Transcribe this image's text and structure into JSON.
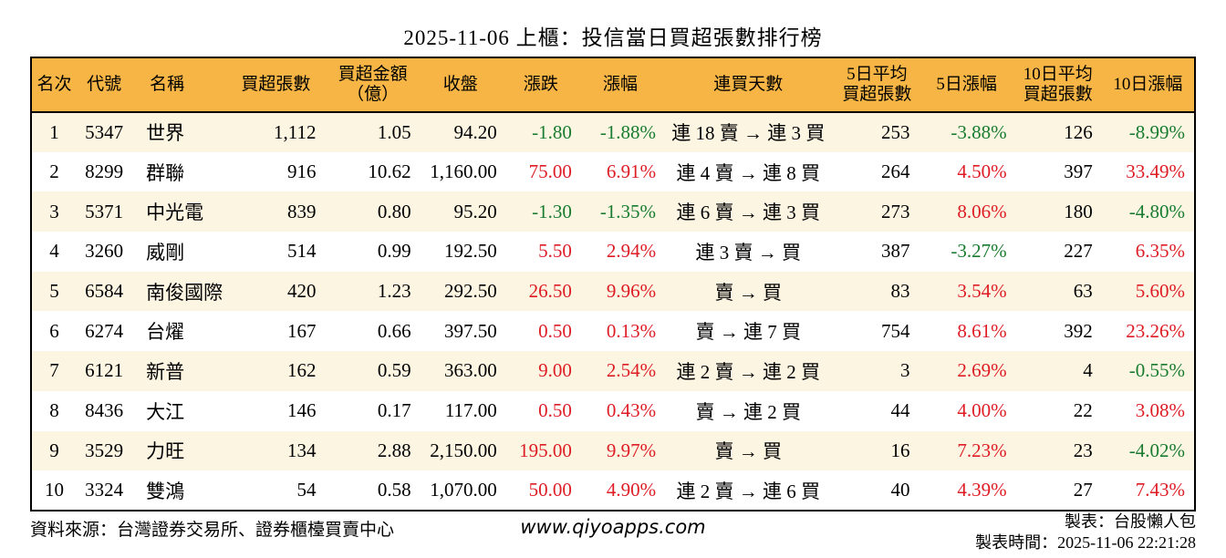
{
  "title": "2025-11-06 上櫃：投信當日買超張數排行榜",
  "colors": {
    "amber": "#F6B544",
    "cream": "#FCF5E2",
    "red": "#DE1C24",
    "green": "#187C30"
  },
  "chart_data": {
    "type": "table",
    "title": "2025-11-06 上櫃：投信當日買超張數排行榜",
    "columns": [
      {
        "key": "rank",
        "label": "名次"
      },
      {
        "key": "code",
        "label": "代號"
      },
      {
        "key": "name",
        "label": "名稱"
      },
      {
        "key": "vol",
        "label": "買超張數"
      },
      {
        "key": "amt",
        "label": "買超金額\n（億）"
      },
      {
        "key": "close",
        "label": "收盤"
      },
      {
        "key": "chg",
        "label": "漲跌"
      },
      {
        "key": "chgpct",
        "label": "漲幅"
      },
      {
        "key": "streak",
        "label": "連買天數"
      },
      {
        "key": "avg5",
        "label": "5日平均\n買超張數"
      },
      {
        "key": "pct5",
        "label": "5日漲幅"
      },
      {
        "key": "avg10",
        "label": "10日平均\n買超張數"
      },
      {
        "key": "pct10",
        "label": "10日漲幅"
      }
    ],
    "colored_keys": [
      "chg",
      "chgpct",
      "pct5",
      "pct10"
    ],
    "rows": [
      {
        "rank": "1",
        "code": "5347",
        "name": "世界",
        "vol": "1,112",
        "amt": "1.05",
        "close": "94.20",
        "chg": "-1.80",
        "chgpct": "-1.88%",
        "streak": "連 18 賣 → 連 3 買",
        "avg5": "253",
        "pct5": "-3.88%",
        "avg10": "126",
        "pct10": "-8.99%"
      },
      {
        "rank": "2",
        "code": "8299",
        "name": "群聯",
        "vol": "916",
        "amt": "10.62",
        "close": "1,160.00",
        "chg": "75.00",
        "chgpct": "6.91%",
        "streak": "連 4 賣 → 連 8 買",
        "avg5": "264",
        "pct5": "4.50%",
        "avg10": "397",
        "pct10": "33.49%"
      },
      {
        "rank": "3",
        "code": "5371",
        "name": "中光電",
        "vol": "839",
        "amt": "0.80",
        "close": "95.20",
        "chg": "-1.30",
        "chgpct": "-1.35%",
        "streak": "連 6 賣 → 連 3 買",
        "avg5": "273",
        "pct5": "8.06%",
        "avg10": "180",
        "pct10": "-4.80%"
      },
      {
        "rank": "4",
        "code": "3260",
        "name": "威剛",
        "vol": "514",
        "amt": "0.99",
        "close": "192.50",
        "chg": "5.50",
        "chgpct": "2.94%",
        "streak": "連 3 賣 → 買",
        "avg5": "387",
        "pct5": "-3.27%",
        "avg10": "227",
        "pct10": "6.35%"
      },
      {
        "rank": "5",
        "code": "6584",
        "name": "南俊國際",
        "vol": "420",
        "amt": "1.23",
        "close": "292.50",
        "chg": "26.50",
        "chgpct": "9.96%",
        "streak": "賣 → 買",
        "avg5": "83",
        "pct5": "3.54%",
        "avg10": "63",
        "pct10": "5.60%"
      },
      {
        "rank": "6",
        "code": "6274",
        "name": "台燿",
        "vol": "167",
        "amt": "0.66",
        "close": "397.50",
        "chg": "0.50",
        "chgpct": "0.13%",
        "streak": "賣 → 連 7 買",
        "avg5": "754",
        "pct5": "8.61%",
        "avg10": "392",
        "pct10": "23.26%"
      },
      {
        "rank": "7",
        "code": "6121",
        "name": "新普",
        "vol": "162",
        "amt": "0.59",
        "close": "363.00",
        "chg": "9.00",
        "chgpct": "2.54%",
        "streak": "連 2 賣 → 連 2 買",
        "avg5": "3",
        "pct5": "2.69%",
        "avg10": "4",
        "pct10": "-0.55%"
      },
      {
        "rank": "8",
        "code": "8436",
        "name": "大江",
        "vol": "146",
        "amt": "0.17",
        "close": "117.00",
        "chg": "0.50",
        "chgpct": "0.43%",
        "streak": "賣 → 連 2 買",
        "avg5": "44",
        "pct5": "4.00%",
        "avg10": "22",
        "pct10": "3.08%"
      },
      {
        "rank": "9",
        "code": "3529",
        "name": "力旺",
        "vol": "134",
        "amt": "2.88",
        "close": "2,150.00",
        "chg": "195.00",
        "chgpct": "9.97%",
        "streak": "賣 → 買",
        "avg5": "16",
        "pct5": "7.23%",
        "avg10": "23",
        "pct10": "-4.02%"
      },
      {
        "rank": "10",
        "code": "3324",
        "name": "雙鴻",
        "vol": "54",
        "amt": "0.58",
        "close": "1,070.00",
        "chg": "50.00",
        "chgpct": "4.90%",
        "streak": "連 2 賣 → 連 6 買",
        "avg5": "40",
        "pct5": "4.39%",
        "avg10": "27",
        "pct10": "7.43%"
      }
    ]
  },
  "footer": {
    "source": "資料來源：台灣證券交易所、證券櫃檯買賣中心",
    "website": "www.qiyoapps.com",
    "made_by": "製表：台股懶人包",
    "made_time": "製表時間：2025-11-06 22:21:28"
  }
}
